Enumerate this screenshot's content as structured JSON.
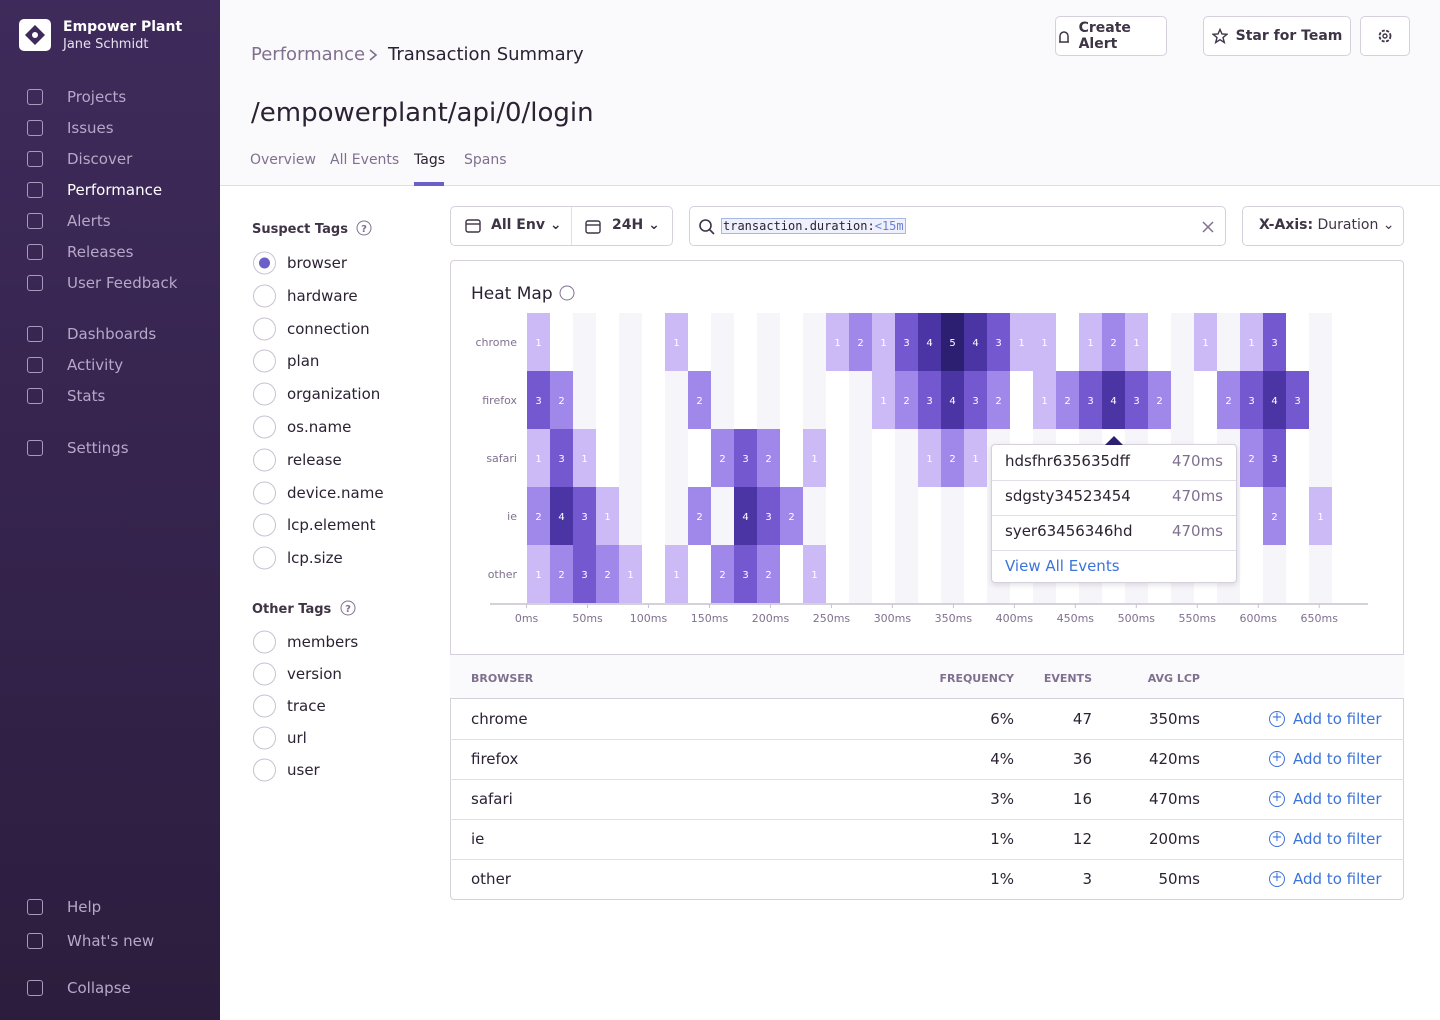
{
  "sidebar": {
    "org": "Empower Plant",
    "user": "Jane Schmidt",
    "nav": [
      "Projects",
      "Issues",
      "Discover",
      "Performance",
      "Alerts",
      "Releases",
      "User Feedback"
    ],
    "nav2": [
      "Dashboards",
      "Activity",
      "Stats"
    ],
    "settings": "Settings",
    "footer": [
      "Help",
      "What's new",
      "Collapse"
    ],
    "active": "Performance"
  },
  "header": {
    "breadcrumb": [
      "Performance",
      "Transaction Summary"
    ],
    "title": "/empowerplant/api/0/login",
    "tabs": [
      "Overview",
      "All Events",
      "Tags",
      "Spans"
    ],
    "active_tab": "Tags",
    "buttons": [
      "Create Alert",
      "Star for Team"
    ]
  },
  "filters": {
    "environment": "All Env",
    "period": "24H",
    "query_key": "transaction.duration:",
    "query_value": "<15m",
    "x_axis_label": "X-Axis:",
    "x_axis": "Duration"
  },
  "suspect_tags": {
    "title": "Suspect Tags",
    "selected": "browser",
    "items": [
      "browser",
      "hardware",
      "connection",
      "plan",
      "organization",
      "os.name",
      "release",
      "device.name",
      "lcp.element",
      "lcp.size"
    ]
  },
  "other_tags": {
    "title": "Other Tags",
    "items": [
      "members",
      "version",
      "trace",
      "url",
      "user"
    ]
  },
  "chart_data": {
    "type": "heatmap",
    "title": "Heat Map",
    "rows": [
      "chrome",
      "firefox",
      "safari",
      "ie",
      "other"
    ],
    "values": [
      [
        1,
        null,
        null,
        null,
        null,
        null,
        1,
        null,
        null,
        null,
        null,
        null,
        null,
        1,
        2,
        1,
        3,
        4,
        5,
        4,
        3,
        1,
        1,
        null,
        1,
        2,
        1,
        null,
        null,
        1,
        null,
        1,
        3,
        null,
        null,
        null
      ],
      [
        3,
        2,
        null,
        null,
        null,
        null,
        null,
        2,
        null,
        null,
        null,
        null,
        null,
        null,
        null,
        1,
        2,
        3,
        4,
        3,
        2,
        null,
        1,
        2,
        3,
        4,
        3,
        2,
        null,
        null,
        2,
        3,
        4,
        3,
        null,
        null
      ],
      [
        1,
        3,
        1,
        null,
        null,
        null,
        null,
        null,
        2,
        3,
        2,
        null,
        1,
        null,
        null,
        null,
        null,
        1,
        2,
        1,
        null,
        null,
        null,
        null,
        null,
        null,
        null,
        null,
        null,
        null,
        null,
        2,
        3,
        null,
        null,
        null
      ],
      [
        2,
        4,
        3,
        1,
        null,
        null,
        null,
        2,
        null,
        4,
        3,
        2,
        null,
        null,
        null,
        null,
        null,
        null,
        null,
        null,
        null,
        null,
        null,
        null,
        null,
        null,
        null,
        null,
        null,
        null,
        null,
        null,
        2,
        null,
        1,
        null
      ],
      [
        1,
        2,
        3,
        2,
        1,
        null,
        1,
        null,
        2,
        3,
        2,
        null,
        1,
        null,
        null,
        null,
        null,
        null,
        null,
        null,
        null,
        null,
        null,
        null,
        null,
        null,
        null,
        null,
        null,
        null,
        null,
        null,
        null,
        null,
        null,
        null
      ]
    ],
    "colors": [
      "#cbbaf6",
      "#a088ea",
      "#7358d0",
      "#4b35a4",
      "#2c1f72"
    ],
    "xlim": [
      -30,
      690
    ],
    "xticks": [
      {
        "value": 0,
        "label": "0ms"
      },
      {
        "value": 50,
        "label": "50ms"
      },
      {
        "value": 100,
        "label": "100ms"
      },
      {
        "value": 150,
        "label": "150ms"
      },
      {
        "value": 200,
        "label": "200ms"
      },
      {
        "value": 250,
        "label": "250ms"
      },
      {
        "value": 300,
        "label": "300ms"
      },
      {
        "value": 350,
        "label": "350ms"
      },
      {
        "value": 400,
        "label": "400ms"
      },
      {
        "value": 450,
        "label": "450ms"
      },
      {
        "value": 500,
        "label": "500ms"
      },
      {
        "value": 550,
        "label": "550ms"
      },
      {
        "value": 600,
        "label": "600ms"
      },
      {
        "value": 650,
        "label": "650ms"
      }
    ]
  },
  "tooltip": {
    "items": [
      {
        "id": "hdsfhr635635dff",
        "duration": "470ms"
      },
      {
        "id": "sdgsty34523454",
        "duration": "470ms"
      },
      {
        "id": "syer63456346hd",
        "duration": "470ms"
      }
    ],
    "link": "View All Events"
  },
  "table": {
    "headers": [
      "BROWSER",
      "FREQUENCY",
      "EVENTS",
      "AVG LCP"
    ],
    "rows": [
      [
        "chrome",
        "6%",
        "47",
        "350ms"
      ],
      [
        "firefox",
        "4%",
        "36",
        "420ms"
      ],
      [
        "safari",
        "3%",
        "16",
        "470ms"
      ],
      [
        "ie",
        "1%",
        "12",
        "200ms"
      ],
      [
        "other",
        "1%",
        "3",
        "50ms"
      ]
    ],
    "action": "Add to filter"
  }
}
